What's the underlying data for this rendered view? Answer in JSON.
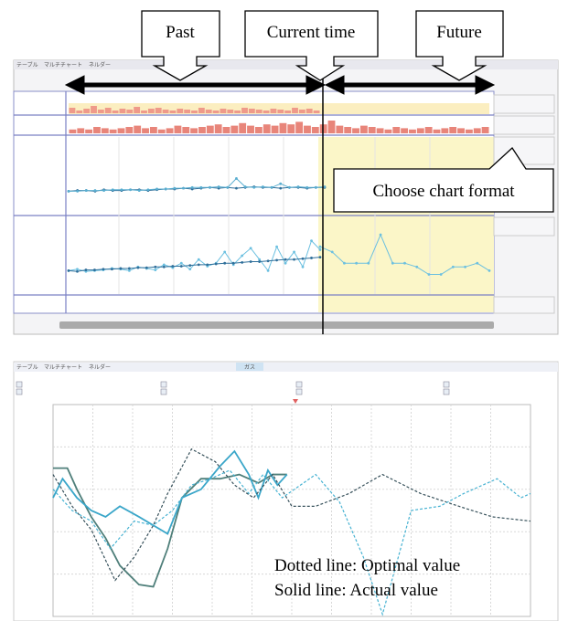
{
  "callouts": {
    "past": "Past",
    "current": "Current time",
    "future": "Future",
    "format": "Choose chart format",
    "legend": [
      "Dotted line: Optimal value",
      "Solid line: Actual value"
    ]
  },
  "top_screen": {
    "tabs": [
      "テーブル",
      "マルチチャート",
      "ネルダー"
    ],
    "strip1_bars": [
      6,
      3,
      5,
      8,
      4,
      6,
      3,
      5,
      4,
      7,
      3,
      5,
      6,
      4,
      3,
      5,
      4,
      3,
      6,
      4,
      3,
      5,
      4,
      3,
      6,
      5,
      4,
      3,
      5,
      4,
      3,
      6,
      4,
      5,
      3
    ],
    "strip2_bars": [
      3,
      4,
      3,
      5,
      4,
      3,
      4,
      5,
      6,
      4,
      5,
      3,
      4,
      6,
      5,
      4,
      5,
      6,
      7,
      5,
      6,
      8,
      6,
      5,
      7,
      6,
      8,
      7,
      9,
      6,
      5,
      7,
      10,
      6,
      5,
      4,
      6,
      5,
      4,
      3,
      5,
      4,
      3,
      4,
      5,
      3,
      4,
      5,
      4,
      3,
      4,
      5
    ],
    "panel3": [
      [
        30,
        31,
        31,
        30,
        32,
        31,
        31,
        32,
        32,
        31,
        32,
        33,
        33,
        34,
        33,
        34,
        35,
        34,
        35,
        34,
        35,
        36,
        35,
        35,
        34,
        35,
        35,
        34,
        35,
        35
      ],
      [
        30,
        30,
        31,
        31,
        31,
        32,
        32,
        32,
        31,
        32,
        33,
        33,
        34,
        34,
        35,
        35,
        35,
        36,
        35,
        47,
        36,
        35,
        36,
        35,
        40,
        35,
        36,
        35,
        35,
        36
      ]
    ],
    "panel4": [
      [
        30,
        32,
        29,
        30,
        31,
        33,
        32,
        30,
        35,
        33,
        31,
        38,
        34,
        40,
        32,
        45,
        36,
        40,
        55,
        38,
        50,
        60,
        45,
        30,
        62,
        40,
        55,
        35,
        70,
        58
      ],
      [
        30,
        29,
        31,
        31,
        32,
        32,
        33,
        33,
        34,
        34,
        35,
        35,
        36,
        36,
        37,
        38,
        38,
        39,
        40,
        40,
        41,
        42,
        42,
        43,
        44,
        45,
        45,
        46,
        47,
        48
      ]
    ],
    "panel4_future": [
      62,
      55,
      40,
      40,
      40,
      78,
      40,
      40,
      35,
      25,
      25,
      35,
      35,
      40,
      30
    ]
  },
  "bottom_screen": {
    "tabs": [
      "テーブル",
      "マルチチャート",
      "ネルダー"
    ],
    "active_tab": "ガス",
    "chart": {
      "type": "line",
      "xlim": [
        0,
        100
      ],
      "ylim": [
        0,
        100
      ],
      "series": [
        {
          "color": "#4f7f7a",
          "style": "solid",
          "x": [
            0,
            3,
            5,
            8,
            11,
            14,
            18,
            21,
            24,
            27,
            31,
            35,
            39,
            43,
            46,
            49
          ],
          "values": [
            70,
            70,
            60,
            47,
            37,
            24,
            15,
            14,
            32,
            56,
            65,
            65,
            67,
            63,
            67,
            67
          ]
        },
        {
          "color": "#3aa6c9",
          "style": "solid",
          "x": [
            0,
            2,
            5,
            8,
            11,
            14,
            18,
            21,
            24,
            27,
            31,
            35,
            38,
            41,
            43,
            45,
            47,
            49
          ],
          "values": [
            56,
            65,
            56,
            50,
            47,
            52,
            47,
            43,
            39,
            56,
            60,
            71,
            78,
            67,
            56,
            69,
            62,
            67
          ]
        },
        {
          "color": "#36505a",
          "style": "dotted",
          "x": [
            0,
            4,
            8,
            13,
            17,
            21,
            24,
            29,
            34,
            38,
            42,
            46,
            50,
            55,
            62,
            69,
            77,
            85,
            92,
            100
          ],
          "values": [
            67,
            52,
            41,
            17,
            28,
            43,
            58,
            79,
            73,
            62,
            56,
            67,
            52,
            52,
            58,
            67,
            58,
            52,
            47,
            45
          ]
        },
        {
          "color": "#46b2d2",
          "style": "dotted",
          "x": [
            0,
            4,
            8,
            12,
            17,
            21,
            25,
            29,
            33,
            37,
            41,
            44,
            48,
            55,
            60,
            65,
            69,
            75,
            81,
            86,
            93,
            98,
            100
          ],
          "values": [
            60,
            50,
            45,
            32,
            45,
            43,
            50,
            62,
            65,
            69,
            58,
            67,
            56,
            67,
            54,
            28,
            1,
            50,
            52,
            58,
            65,
            56,
            58
          ]
        }
      ]
    }
  }
}
